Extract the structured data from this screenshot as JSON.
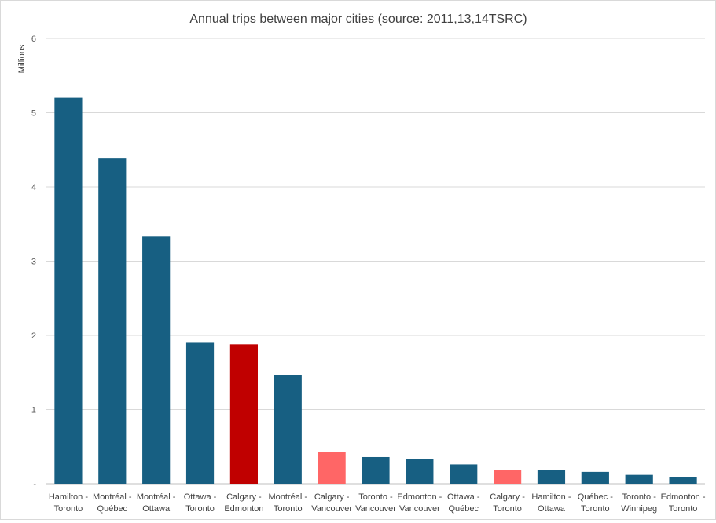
{
  "chart_data": {
    "type": "bar",
    "title": "Annual trips between major cities (source: 2011,13,14TSRC)",
    "ylabel": "Millions",
    "xlabel": "",
    "ylim": [
      0,
      6
    ],
    "yticks": [
      "-",
      "1",
      "2",
      "3",
      "4",
      "5",
      "6"
    ],
    "grid": true,
    "categories": [
      [
        "Hamilton -",
        "Toronto"
      ],
      [
        "Montréal -",
        "Québec"
      ],
      [
        "Montréal -",
        "Ottawa"
      ],
      [
        "Ottawa -",
        "Toronto"
      ],
      [
        "Calgary -",
        "Edmonton"
      ],
      [
        "Montréal -",
        "Toronto"
      ],
      [
        "Calgary -",
        "Vancouver"
      ],
      [
        "Toronto -",
        "Vancouver"
      ],
      [
        "Edmonton -",
        "Vancouver"
      ],
      [
        "Ottawa -",
        "Québec"
      ],
      [
        "Calgary -",
        "Toronto"
      ],
      [
        "Hamilton -",
        "Ottawa"
      ],
      [
        "Québec -",
        "Toronto"
      ],
      [
        "Toronto -",
        "Winnipeg"
      ],
      [
        "Edmonton -",
        "Toronto"
      ]
    ],
    "values": [
      5.2,
      4.39,
      3.33,
      1.9,
      1.88,
      1.47,
      0.43,
      0.36,
      0.33,
      0.26,
      0.18,
      0.18,
      0.16,
      0.12,
      0.09
    ],
    "colors": [
      "#175f82",
      "#175f82",
      "#175f82",
      "#175f82",
      "#c00000",
      "#175f82",
      "#ff6666",
      "#175f82",
      "#175f82",
      "#175f82",
      "#ff6666",
      "#175f82",
      "#175f82",
      "#175f82",
      "#175f82"
    ]
  }
}
